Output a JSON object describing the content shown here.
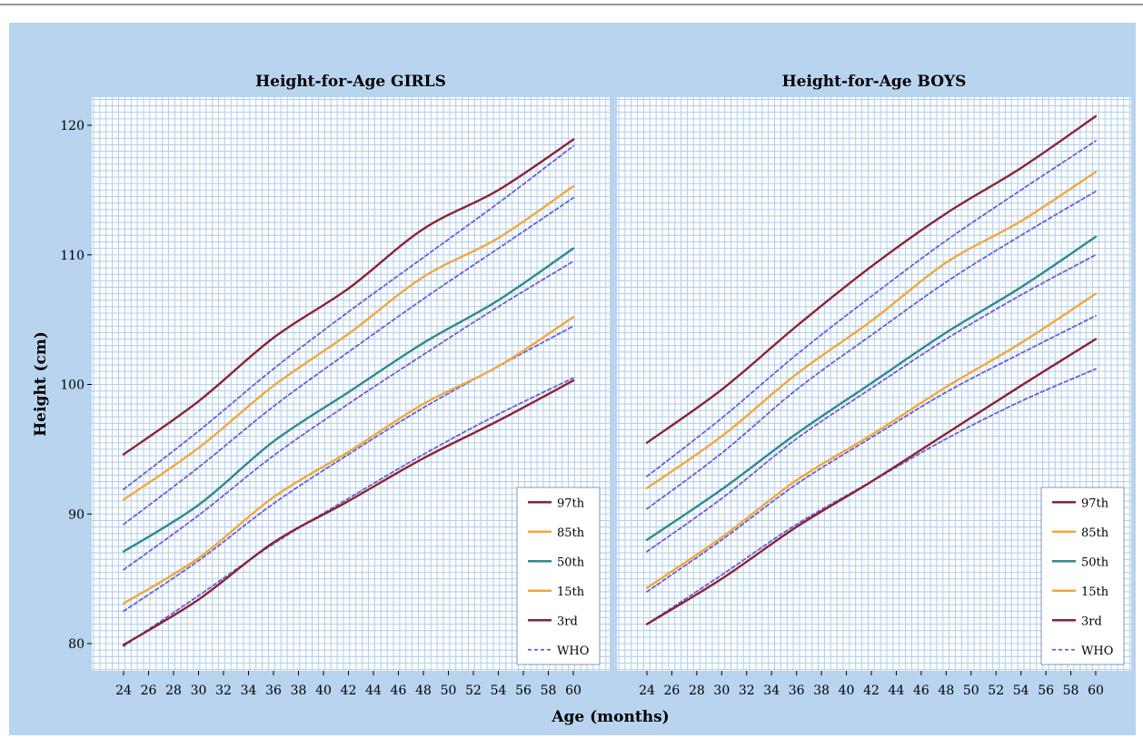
{
  "colors": {
    "p97": "#8b2332",
    "p85": "#f0a83c",
    "p50": "#2f8a8e",
    "p15": "#f0a83c",
    "p3": "#8b2332",
    "who": "#6a5fd0",
    "frame": "#b8d4ee",
    "grid": "#b5d0ec"
  },
  "chart_data": [
    {
      "type": "line",
      "title": "Height-for-Age GIRLS",
      "xlabel": "Age (months)",
      "ylabel": "Height (cm)",
      "xlim": [
        24,
        60
      ],
      "ylim": [
        80,
        120
      ],
      "x_ticks": [
        24,
        26,
        28,
        30,
        32,
        34,
        36,
        38,
        40,
        42,
        44,
        46,
        48,
        50,
        52,
        54,
        56,
        58,
        60
      ],
      "y_ticks": [
        80,
        90,
        100,
        110,
        120
      ],
      "grid": true,
      "legend_position": "bottom-right",
      "x": [
        24,
        30,
        36,
        42,
        48,
        54,
        60
      ],
      "series": [
        {
          "name": "97th",
          "key": "p97",
          "style": "solid",
          "values": [
            94.6,
            98.7,
            103.6,
            107.4,
            112.0,
            115.0,
            118.9
          ]
        },
        {
          "name": "85th",
          "key": "p85",
          "style": "solid",
          "values": [
            91.1,
            95.1,
            99.9,
            103.9,
            108.3,
            111.3,
            115.3
          ]
        },
        {
          "name": "50th",
          "key": "p50",
          "style": "solid",
          "values": [
            87.1,
            90.7,
            95.6,
            99.4,
            103.2,
            106.5,
            110.5
          ]
        },
        {
          "name": "15th",
          "key": "p15",
          "style": "solid",
          "values": [
            83.1,
            86.6,
            91.3,
            94.8,
            98.5,
            101.4,
            105.2
          ]
        },
        {
          "name": "3rd",
          "key": "p3",
          "style": "solid",
          "values": [
            79.9,
            83.4,
            87.8,
            91.0,
            94.3,
            97.2,
            100.3
          ]
        },
        {
          "name": "WHO",
          "key": "who",
          "style": "dashed",
          "values": [
            91.9,
            96.4,
            101.2,
            105.6,
            109.8,
            114.0,
            118.4
          ]
        },
        {
          "name": "",
          "key": "who",
          "style": "dashed",
          "values": [
            89.2,
            93.6,
            98.3,
            102.5,
            106.6,
            110.5,
            114.4
          ]
        },
        {
          "name": "",
          "key": "who",
          "style": "dashed",
          "values": [
            85.7,
            89.9,
            94.5,
            98.5,
            102.3,
            106.0,
            109.5
          ]
        },
        {
          "name": "",
          "key": "who",
          "style": "dashed",
          "values": [
            82.5,
            86.4,
            90.8,
            94.6,
            98.2,
            101.4,
            104.5
          ]
        },
        {
          "name": "",
          "key": "who",
          "style": "dashed",
          "values": [
            79.8,
            83.7,
            87.7,
            91.2,
            94.6,
            97.7,
            100.5
          ]
        }
      ]
    },
    {
      "type": "line",
      "title": "Height-for-Age BOYS",
      "xlabel": "Age (months)",
      "ylabel": "Height (cm)",
      "xlim": [
        24,
        60
      ],
      "ylim": [
        80,
        120
      ],
      "x_ticks": [
        24,
        26,
        28,
        30,
        32,
        34,
        36,
        38,
        40,
        42,
        44,
        46,
        48,
        50,
        52,
        54,
        56,
        58,
        60
      ],
      "y_ticks": [
        80,
        90,
        100,
        110,
        120
      ],
      "grid": true,
      "legend_position": "bottom-right",
      "x": [
        24,
        30,
        36,
        42,
        48,
        54,
        60
      ],
      "series": [
        {
          "name": "97th",
          "key": "p97",
          "style": "solid",
          "values": [
            95.5,
            99.6,
            104.5,
            109.1,
            113.2,
            116.7,
            120.7
          ]
        },
        {
          "name": "85th",
          "key": "p85",
          "style": "solid",
          "values": [
            92.0,
            96.0,
            100.8,
            104.9,
            109.4,
            112.6,
            116.4
          ]
        },
        {
          "name": "50th",
          "key": "p50",
          "style": "solid",
          "values": [
            88.0,
            91.9,
            96.2,
            100.1,
            104.0,
            107.5,
            111.4
          ]
        },
        {
          "name": "15th",
          "key": "p15",
          "style": "solid",
          "values": [
            84.3,
            88.2,
            92.6,
            96.1,
            99.8,
            103.2,
            107.0
          ]
        },
        {
          "name": "3rd",
          "key": "p3",
          "style": "solid",
          "values": [
            81.5,
            85.0,
            89.0,
            92.5,
            96.2,
            99.9,
            103.5
          ]
        },
        {
          "name": "WHO",
          "key": "who",
          "style": "dashed",
          "values": [
            92.9,
            97.4,
            102.3,
            106.8,
            111.1,
            115.0,
            118.8
          ]
        },
        {
          "name": "",
          "key": "who",
          "style": "dashed",
          "values": [
            90.4,
            94.7,
            99.6,
            103.8,
            107.9,
            111.5,
            114.9
          ]
        },
        {
          "name": "",
          "key": "who",
          "style": "dashed",
          "values": [
            87.1,
            91.2,
            95.8,
            99.7,
            103.5,
            106.9,
            110.0
          ]
        },
        {
          "name": "",
          "key": "who",
          "style": "dashed",
          "values": [
            84.0,
            88.0,
            92.3,
            95.9,
            99.4,
            102.4,
            105.3
          ]
        },
        {
          "name": "",
          "key": "who",
          "style": "dashed",
          "values": [
            81.5,
            85.3,
            89.2,
            92.5,
            95.8,
            98.7,
            101.2
          ]
        }
      ]
    }
  ]
}
